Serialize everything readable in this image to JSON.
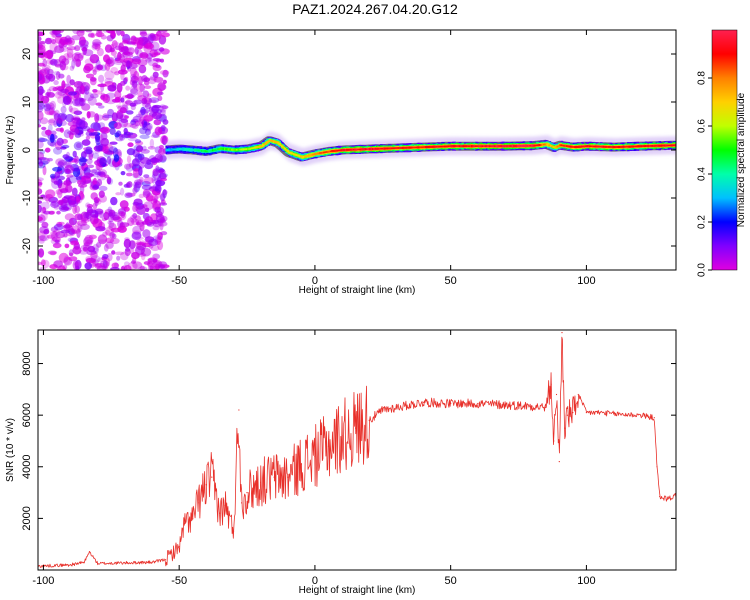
{
  "title": "PAZ1.2024.267.04.20.G12",
  "colors": {
    "snr_line": "#e8302a",
    "frame": "#000000",
    "track_outline": "#1a1a1a"
  },
  "chart_data": [
    {
      "type": "heatmap",
      "xlabel": "Height of straight line (km)",
      "ylabel": "Frequency (Hz)",
      "xlim": [
        -102,
        133
      ],
      "ylim": [
        -25,
        25
      ],
      "xticks": [
        -100,
        -50,
        0,
        50,
        100
      ],
      "yticks": [
        -20,
        -10,
        0,
        10,
        20
      ],
      "colorbar": {
        "label": "Normalized spectral amplitude",
        "range": [
          0.0,
          1.0
        ],
        "ticks": [
          "0.0",
          "0.2",
          "0.4",
          "0.6",
          "0.8"
        ],
        "colormap": [
          "#e000e0",
          "#8000ff",
          "#0000ff",
          "#00c0ff",
          "#00ffaa",
          "#00ff00",
          "#c0ff00",
          "#ffd000",
          "#ff8000",
          "#ff0000",
          "#ff2050"
        ],
        "tick_values": [
          0.0,
          0.2,
          0.4,
          0.6,
          0.8
        ]
      },
      "scatter_region_x": [
        -102,
        -55
      ],
      "ridge": {
        "x": [
          -55,
          -50,
          -45,
          -40,
          -35,
          -30,
          -25,
          -20,
          -17,
          -14,
          -10,
          -5,
          0,
          5,
          10,
          20,
          30,
          40,
          50,
          60,
          70,
          80,
          85,
          88,
          90,
          95,
          100,
          110,
          120,
          133
        ],
        "freq": [
          0.0,
          0.2,
          0.0,
          -0.3,
          0.3,
          0.0,
          0.2,
          0.8,
          2.0,
          1.5,
          -0.5,
          -1.5,
          -0.8,
          -0.3,
          0.0,
          0.2,
          0.4,
          0.6,
          0.8,
          0.8,
          0.8,
          0.9,
          1.2,
          0.5,
          1.0,
          0.6,
          0.8,
          0.6,
          0.8,
          1.0
        ],
        "amplitude": [
          0.3,
          0.35,
          0.4,
          0.45,
          0.5,
          0.55,
          0.6,
          0.7,
          0.75,
          0.7,
          0.65,
          0.7,
          0.8,
          0.85,
          0.95,
          0.95,
          0.9,
          0.9,
          0.92,
          0.95,
          0.97,
          0.97,
          0.75,
          0.7,
          0.85,
          0.9,
          0.92,
          0.9,
          0.92,
          0.93
        ]
      }
    },
    {
      "type": "line",
      "xlabel": "Height of straight line (km)",
      "ylabel": "SNR (10 * v/v)",
      "xlim": [
        -102,
        133
      ],
      "ylim": [
        0,
        9300
      ],
      "xticks": [
        -100,
        -50,
        0,
        50,
        100
      ],
      "yticks": [
        2000,
        4000,
        6000,
        8000
      ],
      "series": [
        {
          "x": [
            -102,
            -90,
            -85,
            -83,
            -80,
            -60,
            -55,
            -50,
            -48,
            -45,
            -43,
            -40,
            -38,
            -35,
            -33,
            -30,
            -28,
            -27,
            -25,
            -20,
            -15,
            -10,
            -5,
            0,
            5,
            10,
            15,
            20,
            25,
            30,
            40,
            50,
            60,
            70,
            80,
            85,
            87,
            88,
            89,
            90,
            91,
            92,
            93,
            95,
            97,
            100,
            105,
            110,
            120,
            125,
            126,
            127,
            130,
            133
          ],
          "y": [
            150,
            200,
            300,
            700,
            250,
            300,
            400,
            900,
            1800,
            2000,
            2600,
            3300,
            3600,
            2200,
            2500,
            1500,
            6200,
            2600,
            3000,
            3400,
            3600,
            3600,
            4100,
            4400,
            4800,
            5200,
            5500,
            5800,
            6200,
            6300,
            6500,
            6450,
            6450,
            6400,
            6350,
            6300,
            7200,
            5000,
            6800,
            4200,
            9200,
            5500,
            6000,
            6100,
            6800,
            6100,
            6100,
            6050,
            6000,
            5900,
            4000,
            2850,
            2750,
            2900
          ]
        }
      ]
    }
  ]
}
